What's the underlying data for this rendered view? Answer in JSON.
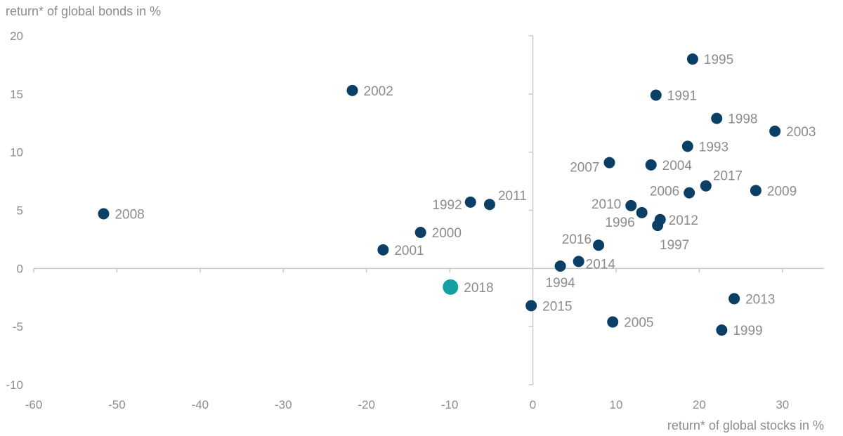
{
  "chart_data": {
    "type": "scatter",
    "ylabel": "return* of global bonds in %",
    "xlabel": "return* of global stocks in %",
    "xlim": [
      -60,
      35
    ],
    "ylim": [
      -10,
      20
    ],
    "xticks": [
      "-60",
      "-50",
      "-40",
      "-30",
      "-20",
      "-10",
      "0",
      "10",
      "20",
      "30"
    ],
    "yticks": [
      "20",
      "15",
      "10",
      "5",
      "0",
      "-5",
      "-10"
    ],
    "colors": {
      "default": "#0b3f66",
      "highlight": "#12a0a0",
      "text": "#8c8c8c",
      "axis": "#c9c9c9"
    },
    "points": [
      {
        "label": "1991",
        "x": 14.8,
        "y": 14.9
      },
      {
        "label": "1992",
        "x": -7.5,
        "y": 5.7
      },
      {
        "label": "1993",
        "x": 18.6,
        "y": 10.5
      },
      {
        "label": "1994",
        "x": 3.3,
        "y": 0.2
      },
      {
        "label": "1995",
        "x": 19.2,
        "y": 18.0
      },
      {
        "label": "1996",
        "x": 13.1,
        "y": 4.8
      },
      {
        "label": "1997",
        "x": 15.0,
        "y": 3.7
      },
      {
        "label": "1998",
        "x": 22.1,
        "y": 12.9
      },
      {
        "label": "1999",
        "x": 22.7,
        "y": -5.3
      },
      {
        "label": "2000",
        "x": -13.5,
        "y": 3.1
      },
      {
        "label": "2001",
        "x": -18.0,
        "y": 1.6
      },
      {
        "label": "2002",
        "x": -21.7,
        "y": 15.3
      },
      {
        "label": "2003",
        "x": 29.1,
        "y": 11.8
      },
      {
        "label": "2004",
        "x": 14.2,
        "y": 8.9
      },
      {
        "label": "2005",
        "x": 9.6,
        "y": -4.6
      },
      {
        "label": "2006",
        "x": 18.8,
        "y": 6.5
      },
      {
        "label": "2007",
        "x": 9.2,
        "y": 9.1
      },
      {
        "label": "2008",
        "x": -51.6,
        "y": 4.7
      },
      {
        "label": "2009",
        "x": 26.8,
        "y": 6.7
      },
      {
        "label": "2010",
        "x": 11.8,
        "y": 5.4
      },
      {
        "label": "2011",
        "x": -5.2,
        "y": 5.5
      },
      {
        "label": "2012",
        "x": 15.3,
        "y": 4.2
      },
      {
        "label": "2013",
        "x": 24.2,
        "y": -2.6
      },
      {
        "label": "2014",
        "x": 5.5,
        "y": 0.6
      },
      {
        "label": "2015",
        "x": -0.2,
        "y": -3.2
      },
      {
        "label": "2016",
        "x": 7.9,
        "y": 2.0
      },
      {
        "label": "2017",
        "x": 20.8,
        "y": 7.1
      },
      {
        "label": "2018",
        "x": -9.9,
        "y": -1.6,
        "highlight": true
      }
    ]
  }
}
